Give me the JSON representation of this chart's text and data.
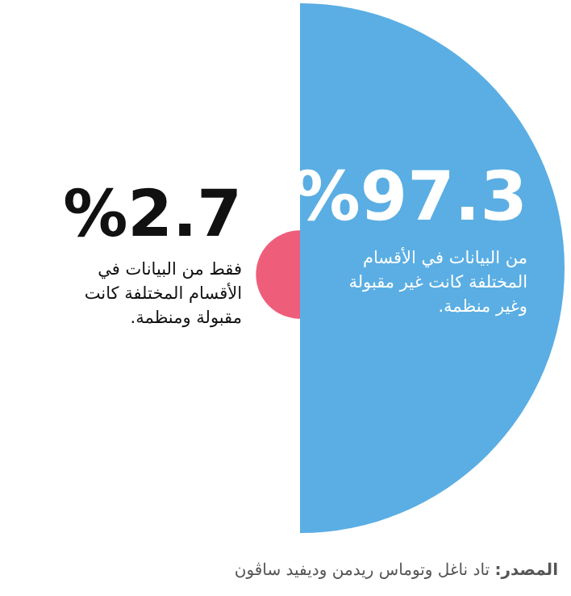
{
  "chart_data": {
    "type": "other",
    "categories": [
      "من البيانات في الأقسام المختلفة كانت غير مقبولة وغير منظمة.",
      "فقط من البيانات في الأقسام المختلفة كانت مقبولة ومنظمة."
    ],
    "values": [
      97.3,
      2.7
    ],
    "colors": [
      "#5aaee3",
      "#ee5e7a"
    ],
    "value_labels": [
      "%97.3",
      "%2.7"
    ],
    "annotations": [
      "**المصدر:** تاد ناغل وتوماس ريدمن وديفيد ساڤون"
    ]
  }
}
